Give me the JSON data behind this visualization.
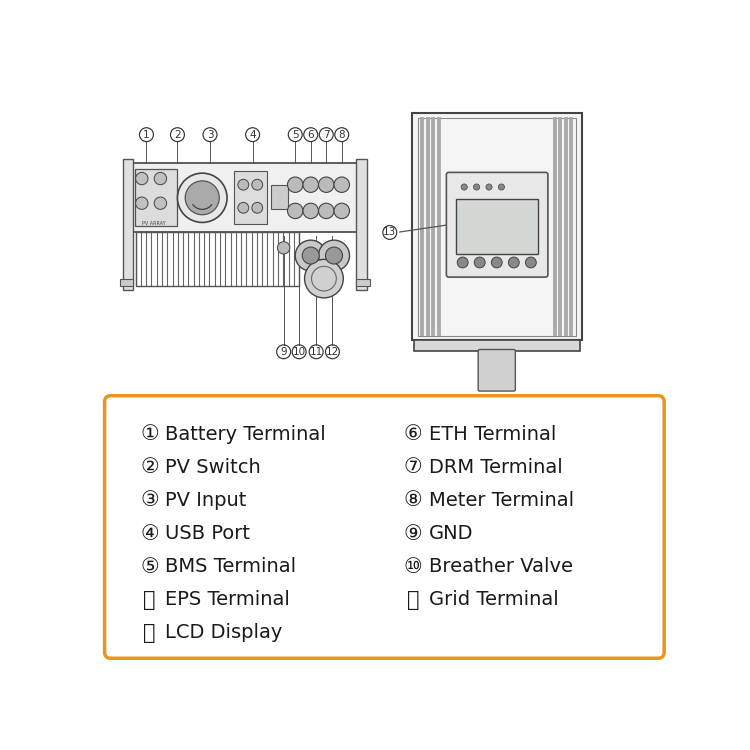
{
  "bg_color": "#ffffff",
  "legend_border_color": "#E8961E",
  "legend_bg_color": "#ffffff",
  "legend_text_color": "#1a1a1a",
  "diagram_color": "#555555",
  "legend_left": [
    [
      "①",
      "Battery Terminal"
    ],
    [
      "②",
      "PV Switch"
    ],
    [
      "③",
      "PV Input"
    ],
    [
      "④",
      "USB Port"
    ],
    [
      "⑤",
      "BMS Terminal"
    ],
    [
      "⑪",
      "EPS Terminal"
    ],
    [
      "⑬",
      "LCD Display"
    ]
  ],
  "legend_right": [
    [
      "⑥",
      "ETH Terminal"
    ],
    [
      "⑦",
      "DRM Terminal"
    ],
    [
      "⑧",
      "Meter Terminal"
    ],
    [
      "⑨",
      "GND"
    ],
    [
      "⑩",
      "Breather Valve"
    ],
    [
      "⑫",
      "Grid Terminal"
    ]
  ],
  "font_size_legend": 14
}
